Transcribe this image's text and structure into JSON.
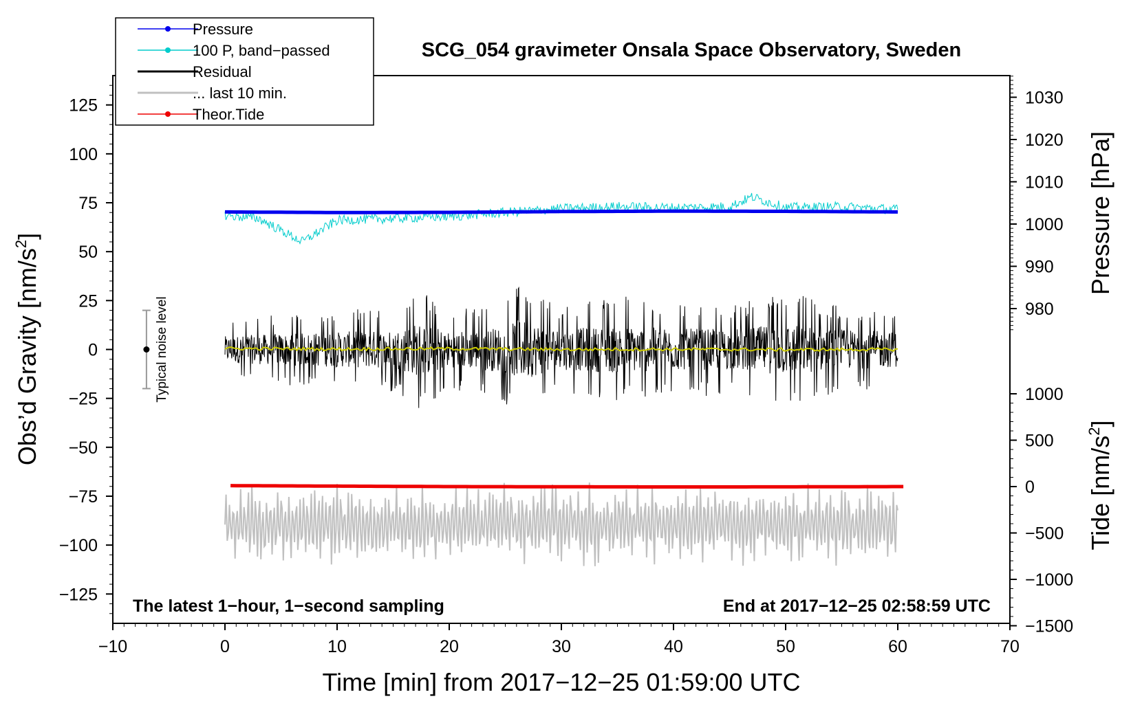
{
  "chart_data": {
    "type": "line",
    "title": "SCG_054 gravimeter Onsala Space Observatory, Sweden",
    "xlabel": "Time [min] from 2017−12−25 01:59:00 UTC",
    "ylabel_left": "Obs’d Gravity [nm/s",
    "ylabel_left_sup": "2",
    "ylabel_left_end": "]",
    "ylabel_right_top": "Pressure [hPa]",
    "ylabel_right_bottom": "Tide [nm/s",
    "ylabel_right_bottom_sup": "2",
    "ylabel_right_bottom_end": "]",
    "xlim": [
      -10,
      70
    ],
    "ylim_left": [
      -140,
      140
    ],
    "pressure_axis_range": [
      973.5,
      1035.5
    ],
    "tide_axis_range": [
      -1500,
      1000
    ],
    "x_ticks": [
      -10,
      0,
      10,
      20,
      30,
      40,
      50,
      60,
      70
    ],
    "x_tick_labels": [
      "−10",
      "0",
      "10",
      "20",
      "30",
      "40",
      "50",
      "60",
      "70"
    ],
    "y_left_ticks": [
      125,
      100,
      75,
      50,
      25,
      0,
      -25,
      -50,
      -75,
      -100,
      -125
    ],
    "y_left_tick_labels": [
      "125",
      "100",
      "75",
      "50",
      "25",
      "0",
      "−25",
      "−50",
      "−75",
      "−100",
      "−125"
    ],
    "pressure_ticks": [
      1030,
      1020,
      1010,
      1000,
      990,
      980
    ],
    "pressure_tick_labels": [
      "1030",
      "1020",
      "1010",
      "1000",
      "990",
      "980"
    ],
    "tide_ticks": [
      1000,
      500,
      0,
      -500,
      -1000,
      -1500
    ],
    "tide_tick_labels": [
      "1000",
      "500",
      "0",
      "−500",
      "−1000",
      "−1500"
    ],
    "annotation_left": "The latest 1−hour, 1−second sampling",
    "annotation_right": "End at 2017−12−25 02:58:59 UTC",
    "noise_marker": {
      "label": "Typical noise level",
      "x": -7,
      "center": 0,
      "low": -20,
      "high": 20
    },
    "legend": [
      {
        "label": "Pressure",
        "color": "#0000ee",
        "style": "line-dot"
      },
      {
        "label": "100 P, band−passed",
        "color": "#00cccc",
        "style": "line-dot"
      },
      {
        "label": "Residual",
        "color": "#000000",
        "style": "line"
      },
      {
        "label": "... last 10 min.",
        "color": "#c0c0c0",
        "style": "line"
      },
      {
        "label": "Theor.Tide",
        "color": "#ee0000",
        "style": "line-dot"
      }
    ],
    "series": [
      {
        "name": "Pressure",
        "axis": "left-gravity-units",
        "color": "#0000ee",
        "x": [
          0,
          10,
          20,
          30,
          40,
          50,
          60
        ],
        "values": [
          70.3,
          70.0,
          70.1,
          70.5,
          70.7,
          70.6,
          70.3
        ]
      },
      {
        "name": "100 P, band−passed",
        "axis": "left-gravity-units",
        "color": "#00cccc",
        "x": [
          0,
          3,
          6.9,
          10,
          15,
          20,
          25,
          30,
          35,
          40,
          45,
          47,
          50,
          55,
          60
        ],
        "values": [
          68.5,
          67.0,
          55.0,
          66.0,
          67.0,
          68.0,
          70.0,
          72.0,
          73.0,
          72.5,
          73.0,
          78.0,
          72.5,
          73.0,
          71.5
        ],
        "noise_amplitude": 2.5
      },
      {
        "name": "Residual",
        "axis": "left",
        "color": "#000000",
        "x": [
          0,
          5,
          10,
          15,
          17.5,
          20,
          25,
          26.3,
          30,
          35,
          40,
          45,
          50,
          55,
          60
        ],
        "values": [
          0,
          0,
          0,
          0,
          0,
          0,
          0,
          0,
          0,
          0,
          0,
          0,
          0,
          0,
          0
        ],
        "envelope_max": [
          16,
          18,
          20,
          22,
          30,
          20,
          24,
          35,
          22,
          28,
          24,
          22,
          30,
          22,
          20
        ],
        "envelope_min": [
          -14,
          -18,
          -20,
          -22,
          -33,
          -20,
          -28,
          -34,
          -24,
          -26,
          -24,
          -24,
          -28,
          -24,
          -20
        ]
      },
      {
        "name": "Residual smoothed",
        "axis": "left",
        "color": "#cccc00",
        "x": [
          0,
          10,
          20,
          30,
          40,
          50,
          60
        ],
        "values": [
          0.5,
          0.2,
          0.4,
          0.0,
          0.1,
          -0.1,
          0.0
        ]
      },
      {
        "name": "... last 10 min.",
        "axis": "left",
        "color": "#c0c0c0",
        "x": [
          0,
          60
        ],
        "values": [
          -88,
          -88
        ],
        "amplitude_min": -112,
        "amplitude_max": -67
      },
      {
        "name": "Theor.Tide",
        "axis": "tide",
        "color": "#ee0000",
        "x": [
          0.5,
          10,
          20,
          30,
          40,
          50,
          60.5
        ],
        "values": [
          10,
          5,
          0,
          -2,
          -4,
          -3,
          0
        ]
      }
    ]
  }
}
